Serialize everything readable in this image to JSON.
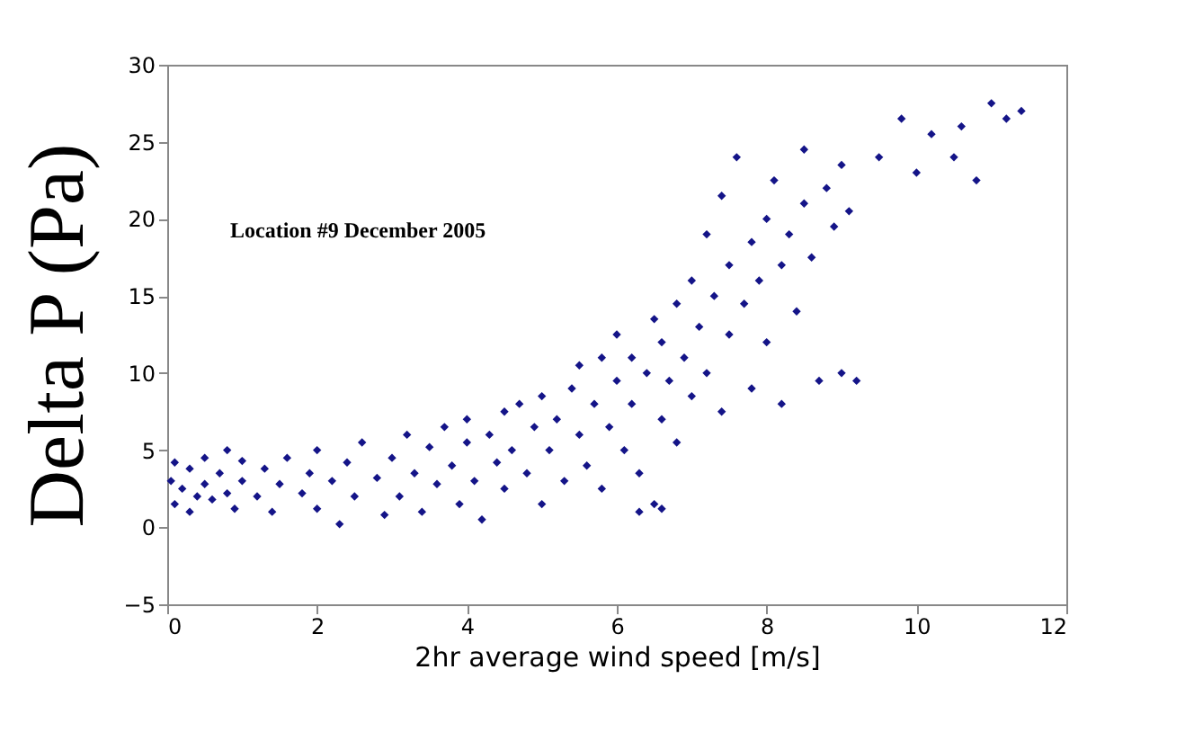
{
  "chart_data": {
    "type": "scatter",
    "xlabel": "2hr average wind speed [m/s]",
    "ylabel": "Delta P (Pa)",
    "annotations": [
      "Location #9 December 2005"
    ],
    "xlim": [
      0,
      12
    ],
    "xticks": [
      0,
      2,
      4,
      6,
      8,
      10,
      12
    ],
    "ylim": [
      -5,
      30
    ],
    "yticks": [
      -5,
      0,
      5,
      10,
      15,
      20,
      25,
      30
    ],
    "grid": false,
    "marker": "diamond",
    "series": [
      {
        "color": "#141488",
        "x": [
          0.05,
          0.1,
          0.1,
          0.2,
          0.3,
          0.3,
          0.4,
          0.5,
          0.5,
          0.6,
          0.7,
          0.8,
          0.8,
          0.9,
          1.0,
          1.0,
          1.2,
          1.3,
          1.4,
          1.5,
          1.6,
          1.8,
          1.9,
          2.0,
          2.0,
          2.2,
          2.3,
          2.4,
          2.5,
          2.6,
          2.8,
          2.9,
          3.0,
          3.1,
          3.2,
          3.3,
          3.4,
          3.5,
          3.6,
          3.7,
          3.8,
          3.9,
          4.0,
          4.0,
          4.1,
          4.2,
          4.3,
          4.4,
          4.5,
          4.5,
          4.6,
          4.7,
          4.8,
          4.9,
          5.0,
          5.0,
          5.1,
          5.2,
          5.3,
          5.4,
          5.5,
          5.5,
          5.6,
          5.7,
          5.8,
          5.8,
          5.9,
          6.0,
          6.0,
          6.1,
          6.2,
          6.2,
          6.3,
          6.4,
          6.5,
          6.5,
          6.6,
          6.6,
          6.7,
          6.8,
          6.8,
          6.9,
          7.0,
          7.0,
          7.1,
          7.2,
          7.2,
          7.3,
          7.4,
          7.4,
          7.5,
          7.5,
          7.6,
          7.7,
          7.8,
          7.8,
          7.9,
          8.0,
          8.0,
          8.1,
          8.2,
          8.2,
          8.3,
          8.4,
          8.5,
          8.5,
          8.6,
          8.7,
          8.8,
          8.9,
          9.0,
          9.0,
          9.1,
          9.2,
          9.5,
          9.8,
          10.0,
          10.2,
          10.5,
          10.6,
          10.8,
          11.0,
          11.2,
          11.4,
          6.3,
          6.6
        ],
        "values": [
          3.0,
          1.5,
          4.2,
          2.5,
          3.8,
          1.0,
          2.0,
          4.5,
          2.8,
          1.8,
          3.5,
          5.0,
          2.2,
          1.2,
          3.0,
          4.3,
          2.0,
          3.8,
          1.0,
          2.8,
          4.5,
          2.2,
          3.5,
          1.2,
          5.0,
          3.0,
          0.2,
          4.2,
          2.0,
          5.5,
          3.2,
          0.8,
          4.5,
          2.0,
          6.0,
          3.5,
          1.0,
          5.2,
          2.8,
          6.5,
          4.0,
          1.5,
          5.5,
          7.0,
          3.0,
          0.5,
          6.0,
          4.2,
          7.5,
          2.5,
          5.0,
          8.0,
          3.5,
          6.5,
          1.5,
          8.5,
          5.0,
          7.0,
          3.0,
          9.0,
          6.0,
          10.5,
          4.0,
          8.0,
          11.0,
          2.5,
          6.5,
          9.5,
          12.5,
          5.0,
          8.0,
          11.0,
          3.5,
          10.0,
          13.5,
          1.5,
          7.0,
          12.0,
          9.5,
          14.5,
          5.5,
          11.0,
          16.0,
          8.5,
          13.0,
          19.0,
          10.0,
          15.0,
          21.5,
          7.5,
          12.5,
          17.0,
          24.0,
          14.5,
          18.5,
          9.0,
          16.0,
          20.0,
          12.0,
          22.5,
          17.0,
          8.0,
          19.0,
          14.0,
          21.0,
          24.5,
          17.5,
          9.5,
          22.0,
          19.5,
          23.5,
          10.0,
          20.5,
          9.5,
          24.0,
          26.5,
          23.0,
          25.5,
          24.0,
          26.0,
          22.5,
          27.5,
          26.5,
          27.0,
          1.0,
          1.2
        ]
      }
    ]
  }
}
